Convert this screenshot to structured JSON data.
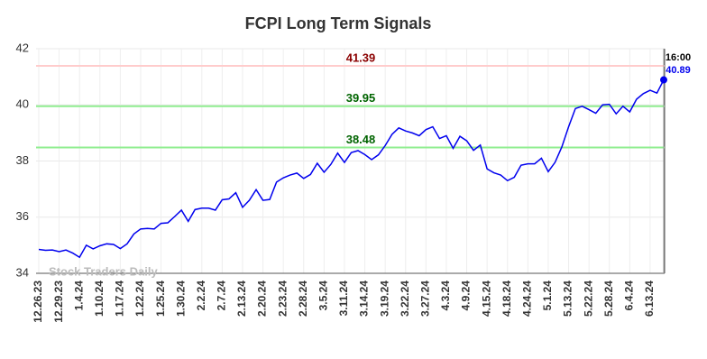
{
  "chart_data": {
    "type": "line",
    "title": "FCPI Long Term Signals",
    "categories": [
      "12.26.23",
      null,
      null,
      "12.29.23",
      null,
      null,
      "1.4.24",
      null,
      null,
      "1.10.24",
      null,
      null,
      "1.17.24",
      null,
      null,
      "1.22.24",
      null,
      null,
      "1.25.24",
      null,
      null,
      "1.30.24",
      null,
      null,
      "2.2.24",
      null,
      null,
      "2.7.24",
      null,
      null,
      "2.13.24",
      null,
      null,
      "2.20.24",
      null,
      null,
      "2.23.24",
      null,
      null,
      "2.28.24",
      null,
      null,
      "3.5.24",
      null,
      null,
      "3.11.24",
      null,
      null,
      "3.14.24",
      null,
      null,
      "3.19.24",
      null,
      null,
      "3.22.24",
      null,
      null,
      "3.27.24",
      null,
      null,
      "4.3.24",
      null,
      null,
      "4.9.24",
      null,
      null,
      "4.15.24",
      null,
      null,
      "4.18.24",
      null,
      null,
      "4.24.24",
      null,
      null,
      "5.1.24",
      null,
      null,
      "5.13.24",
      null,
      null,
      "5.22.24",
      null,
      null,
      "5.28.24",
      null,
      null,
      "6.4.24",
      null,
      null,
      "6.13.24",
      null,
      null
    ],
    "values": [
      34.85,
      34.82,
      34.83,
      34.77,
      34.83,
      34.72,
      34.57,
      35.0,
      34.87,
      34.98,
      35.05,
      35.03,
      34.88,
      35.05,
      35.4,
      35.58,
      35.6,
      35.58,
      35.78,
      35.8,
      36.02,
      36.25,
      35.85,
      36.27,
      36.32,
      36.32,
      36.25,
      36.62,
      36.65,
      36.87,
      36.35,
      36.6,
      36.98,
      36.6,
      36.63,
      37.25,
      37.4,
      37.5,
      37.57,
      37.38,
      37.52,
      37.92,
      37.6,
      37.88,
      38.28,
      37.95,
      38.3,
      38.37,
      38.23,
      38.05,
      38.22,
      38.55,
      38.95,
      39.18,
      39.07,
      39.0,
      38.9,
      39.12,
      39.22,
      38.8,
      38.9,
      38.45,
      38.88,
      38.72,
      38.38,
      38.57,
      37.72,
      37.58,
      37.5,
      37.3,
      37.42,
      37.85,
      37.9,
      37.9,
      38.1,
      37.62,
      37.95,
      38.5,
      39.22,
      39.87,
      39.95,
      39.83,
      39.7,
      40.0,
      40.02,
      39.68,
      39.95,
      39.75,
      40.2,
      40.4,
      40.52,
      40.42,
      40.89
    ],
    "color": "#0000ee",
    "ylim": [
      34,
      42
    ],
    "yticks": [
      34,
      36,
      38,
      40,
      42
    ],
    "grid": true,
    "hlines": [
      {
        "value": 41.39,
        "color": "#ffcccc",
        "text_color": "#8b0000"
      },
      {
        "value": 39.95,
        "color": "#90ee90",
        "text_color": "#006400"
      },
      {
        "value": 38.48,
        "color": "#90ee90",
        "text_color": "#006400"
      }
    ],
    "last_time": "16:00",
    "watermark": "Stock Traders Daily"
  }
}
